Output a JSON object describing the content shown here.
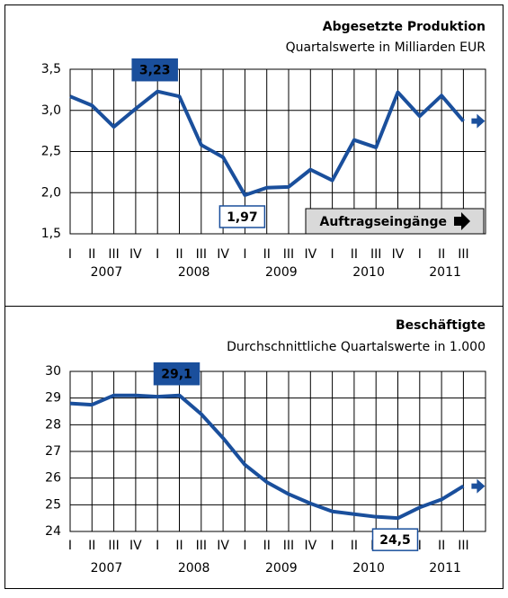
{
  "chart_data": [
    {
      "type": "line",
      "title": "Abgesetzte Produktion",
      "subtitle": "Quartalswerte in Milliarden EUR",
      "categories": [
        "I",
        "II",
        "III",
        "IV",
        "I",
        "II",
        "III",
        "IV",
        "I",
        "II",
        "III",
        "IV",
        "I",
        "II",
        "III",
        "IV",
        "I",
        "II",
        "III"
      ],
      "year_labels": [
        "2007",
        "2008",
        "2009",
        "2010",
        "2011"
      ],
      "series": [
        {
          "name": "Abgesetzte Produktion",
          "color": "#1a4f9c",
          "values": [
            3.17,
            3.06,
            2.8,
            3.02,
            3.23,
            3.17,
            2.58,
            2.43,
            1.97,
            2.06,
            2.07,
            2.28,
            2.15,
            2.64,
            2.55,
            3.22,
            2.93,
            3.18,
            2.87
          ],
          "value_labels": [
            null,
            null,
            null,
            null,
            "3,23",
            null,
            null,
            null,
            "1,97",
            null,
            null,
            null,
            null,
            null,
            null,
            null,
            null,
            null,
            null
          ]
        }
      ],
      "ylim": [
        1.5,
        3.5
      ],
      "yticks": [
        {
          "value": 1.5,
          "label": "1,5"
        },
        {
          "value": 2.0,
          "label": "2,0"
        },
        {
          "value": 2.5,
          "label": "2,5"
        },
        {
          "value": 3.0,
          "label": "3,0"
        },
        {
          "value": 3.5,
          "label": "3,5"
        }
      ],
      "grid": true,
      "link": "Auftragseingänge"
    },
    {
      "type": "line",
      "title": "Beschäftigte",
      "subtitle": "Durchschnittliche Quartalswerte in 1.000",
      "categories": [
        "I",
        "II",
        "III",
        "IV",
        "I",
        "II",
        "III",
        "IV",
        "I",
        "II",
        "III",
        "IV",
        "I",
        "II",
        "III",
        "IV",
        "I",
        "II",
        "III"
      ],
      "year_labels": [
        "2007",
        "2008",
        "2009",
        "2010",
        "2011"
      ],
      "series": [
        {
          "name": "Beschäftigte",
          "color": "#1a4f9c",
          "values": [
            28.8,
            28.75,
            29.1,
            29.1,
            29.05,
            29.1,
            28.4,
            27.5,
            26.5,
            25.85,
            25.4,
            25.05,
            24.75,
            24.65,
            24.55,
            24.5,
            24.9,
            25.2,
            25.7
          ],
          "value_labels": [
            null,
            null,
            null,
            null,
            null,
            "29,1",
            null,
            null,
            null,
            null,
            null,
            null,
            null,
            null,
            null,
            "24,5",
            null,
            null,
            null
          ]
        }
      ],
      "ylim": [
        24,
        30
      ],
      "yticks": [
        24,
        25,
        26,
        27,
        28,
        29,
        30
      ],
      "grid": true
    }
  ]
}
